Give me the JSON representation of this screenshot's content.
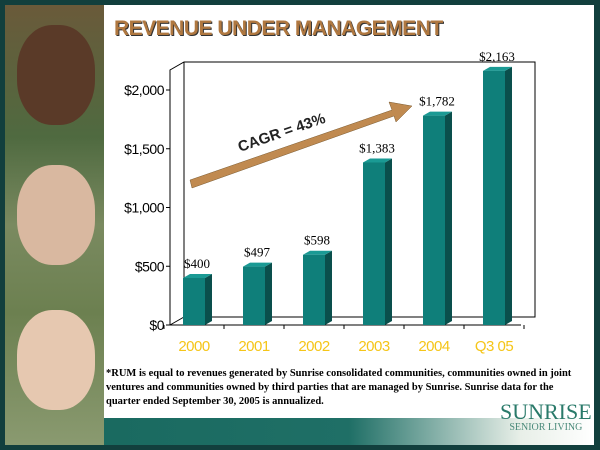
{
  "title": "REVENUE UNDER MANAGEMENT",
  "annotation": "CAGR = 43%",
  "footnote": "*RUM is equal to revenues generated by Sunrise consolidated communities, communities owned in joint ventures and communities owned by third parties that are managed by Sunrise. Sunrise data for the quarter ended September 30, 2005 is annualized.",
  "logo": {
    "name": "SUNRISE",
    "tagline": "SENIOR LIVING"
  },
  "colors": {
    "bar": "#0f7f7a",
    "bar_side": "#0a4f4c",
    "tick_label": "#f5c518",
    "title": "#b07840",
    "arrow": "#c08a50"
  },
  "chart_data": {
    "type": "bar",
    "title": "REVENUE UNDER MANAGEMENT",
    "categories": [
      "2000",
      "2001",
      "2002",
      "2003",
      "2004",
      "Q3 05"
    ],
    "values": [
      400,
      497,
      598,
      1383,
      1782,
      2163
    ],
    "data_labels": [
      "$400",
      "$497",
      "$598",
      "$1,383",
      "$1,782",
      "$2,163"
    ],
    "yticks": [
      "$0",
      "$500",
      "$1,000",
      "$1,500",
      "$2,000"
    ],
    "ytick_values": [
      0,
      500,
      1000,
      1500,
      2000
    ],
    "ylim": [
      0,
      2000
    ],
    "xlabel": "",
    "ylabel": ""
  }
}
